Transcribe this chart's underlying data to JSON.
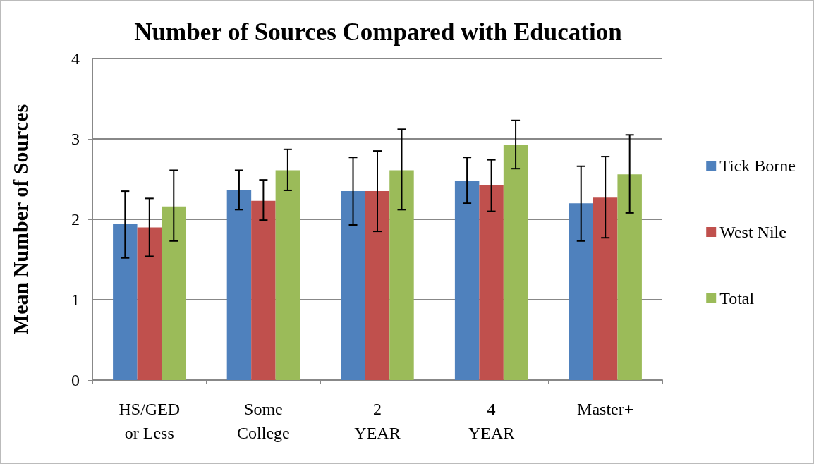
{
  "chart_data": {
    "type": "bar",
    "title": "Number of Sources Compared with Education",
    "ylabel": "Mean Number of Sources",
    "categories": [
      "HS/GED or Less",
      "Some College",
      "2 YEAR",
      "4 YEAR",
      "Master+"
    ],
    "series": [
      {
        "name": "Tick Borne",
        "color": "#4f81bd",
        "values": [
          1.94,
          2.36,
          2.35,
          2.48,
          2.2
        ],
        "errors": [
          [
            1.52,
            2.35
          ],
          [
            2.12,
            2.61
          ],
          [
            1.93,
            2.77
          ],
          [
            2.2,
            2.77
          ],
          [
            1.73,
            2.66
          ]
        ]
      },
      {
        "name": "West Nile",
        "color": "#c0504d",
        "values": [
          1.9,
          2.23,
          2.35,
          2.42,
          2.27
        ],
        "errors": [
          [
            1.54,
            2.26
          ],
          [
            1.99,
            2.49
          ],
          [
            1.85,
            2.85
          ],
          [
            2.1,
            2.74
          ],
          [
            1.77,
            2.78
          ]
        ]
      },
      {
        "name": "Total",
        "color": "#9bbb59",
        "values": [
          2.16,
          2.61,
          2.61,
          2.93,
          2.56
        ],
        "errors": [
          [
            1.73,
            2.61
          ],
          [
            2.36,
            2.87
          ],
          [
            2.12,
            3.12
          ],
          [
            2.63,
            3.23
          ],
          [
            2.08,
            3.05
          ]
        ]
      }
    ],
    "ylim": [
      0,
      4
    ],
    "yticks": [
      0,
      1,
      2,
      3,
      4
    ],
    "grid": "y",
    "legend": "right"
  }
}
